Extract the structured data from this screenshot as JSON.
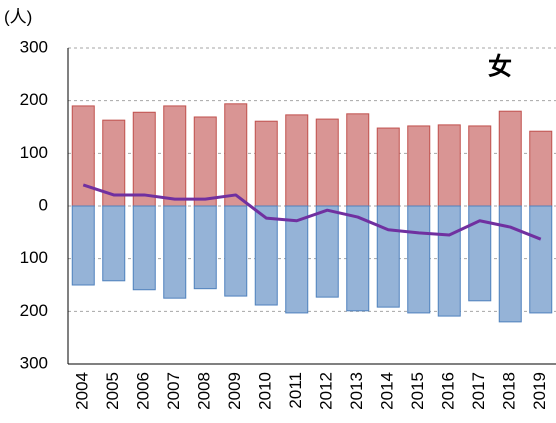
{
  "chart_data": {
    "type": "bar-line",
    "y_unit": "(人)",
    "annotation": "女",
    "categories": [
      "2004",
      "2005",
      "2006",
      "2007",
      "2008",
      "2009",
      "2010",
      "2011",
      "2012",
      "2013",
      "2014",
      "2015",
      "2016",
      "2017",
      "2018",
      "2019"
    ],
    "series": [
      {
        "type": "bar",
        "color": "#d99594",
        "edge": "#c0504d",
        "values": [
          190,
          163,
          178,
          190,
          169,
          194,
          161,
          173,
          165,
          175,
          148,
          152,
          154,
          152,
          180,
          142
        ]
      },
      {
        "type": "bar",
        "color": "#95b3d7",
        "edge": "#4f81bd",
        "values": [
          -150,
          -142,
          -159,
          -175,
          -157,
          -171,
          -188,
          -203,
          -173,
          -199,
          -192,
          -203,
          -209,
          -180,
          -220,
          -203
        ]
      },
      {
        "type": "line",
        "color": "#7030a0",
        "values": [
          40,
          21,
          21,
          13,
          13,
          21,
          -23,
          -28,
          -8,
          -21,
          -45,
          -51,
          -55,
          -28,
          -40,
          -63
        ]
      }
    ],
    "ylim": [
      -300,
      300
    ],
    "yticks": [
      {
        "value": -300,
        "label": "300"
      },
      {
        "value": -200,
        "label": "200"
      },
      {
        "value": -100,
        "label": "100"
      },
      0,
      100,
      200,
      300
    ],
    "grid": true
  }
}
